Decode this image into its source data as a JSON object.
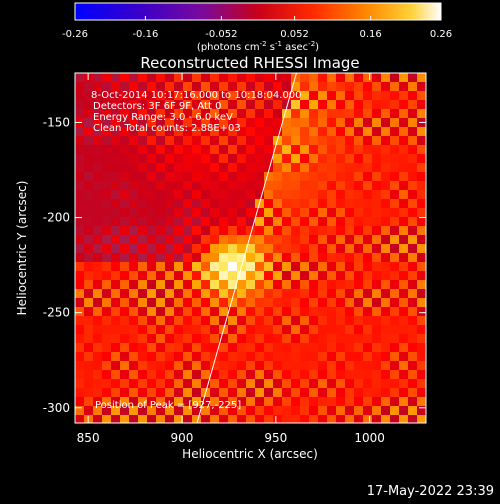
{
  "chart_data": {
    "type": "heatmap",
    "title": "Reconstructed RHESSI Image",
    "xlabel": "Heliocentric X (arcsec)",
    "ylabel": "Heliocentric Y (arcsec)",
    "xlim": [
      843,
      1030
    ],
    "ylim": [
      -308,
      -124
    ],
    "x_ticks": [
      850,
      900,
      950,
      1000
    ],
    "y_ticks": [
      -150,
      -200,
      -250,
      -300
    ],
    "colorbar": {
      "range": [
        -0.26,
        0.26
      ],
      "ticks": [
        "-0.26",
        "-0.16",
        "-0.052",
        "0.052",
        "0.16",
        "0.26"
      ],
      "units_line": "(photons cm",
      "units_sup1": "-2",
      "units_mid1": " s",
      "units_sup2": "-1",
      "units_mid2": " asec",
      "units_sup3": "-2",
      "units_end": ")"
    },
    "annotations": [
      " 8-Oct-2014 10:17:16.000 to 10:18:04.000",
      "Detectors: 3F 6F 9F, Att 0",
      "Energy Range: 3.0 - 6.0 keV",
      "Clean    Total counts: 2.88E+03"
    ],
    "peak_label": "Position of Peak = [927,-225]",
    "peak": {
      "x": 927,
      "y": -225,
      "value": 0.26
    },
    "limb_points": [
      [
        908,
        -308
      ],
      [
        961,
        -124
      ]
    ],
    "grid": false
  },
  "timestamp": "17-May-2022 23:39",
  "colors": {
    "background": "#000000",
    "text": "#ffffff",
    "colormap": [
      "#0000ff",
      "#3a00c8",
      "#7a0a9a",
      "#a81e4a",
      "#c8001a",
      "#ff0000",
      "#ff5a00",
      "#ffaa00",
      "#ffe85a",
      "#ffffff"
    ]
  }
}
